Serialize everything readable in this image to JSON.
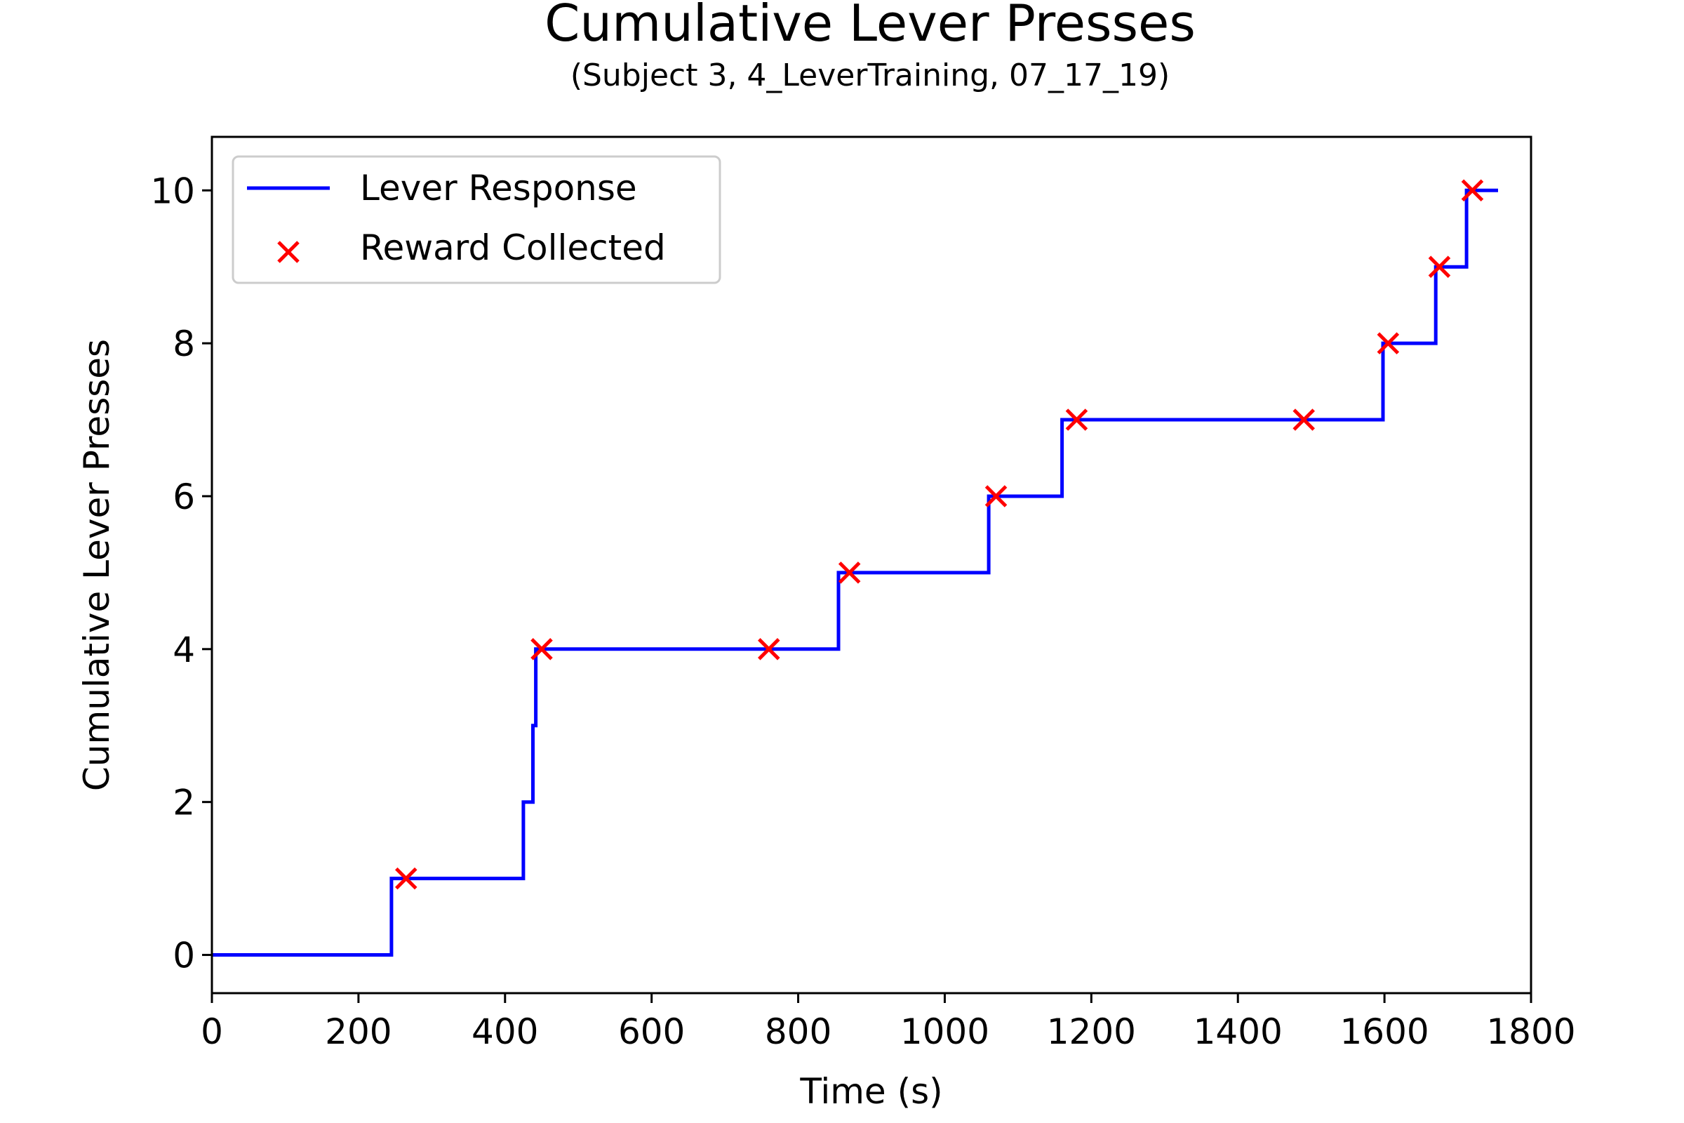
{
  "chart_data": {
    "type": "line",
    "title": "Cumulative Lever Presses",
    "subtitle": "(Subject 3, 4_LeverTraining, 07_17_19)",
    "xlabel": "Time (s)",
    "ylabel": "Cumulative Lever Presses",
    "xlim": [
      0,
      1800
    ],
    "ylim": [
      -0.5,
      10.7
    ],
    "x_ticks": [
      0,
      200,
      400,
      600,
      800,
      1000,
      1200,
      1400,
      1600,
      1800
    ],
    "y_ticks": [
      0,
      2,
      4,
      6,
      8,
      10
    ],
    "grid": false,
    "legend_position": "upper-left",
    "series": [
      {
        "name": "Lever Response",
        "type": "step",
        "color": "#0000ff",
        "points": [
          [
            0,
            0
          ],
          [
            245,
            0
          ],
          [
            245,
            1
          ],
          [
            425,
            1
          ],
          [
            425,
            2
          ],
          [
            438,
            2
          ],
          [
            438,
            3
          ],
          [
            442,
            3
          ],
          [
            442,
            4
          ],
          [
            855,
            4
          ],
          [
            855,
            5
          ],
          [
            1060,
            5
          ],
          [
            1060,
            6
          ],
          [
            1160,
            6
          ],
          [
            1160,
            7
          ],
          [
            1598,
            7
          ],
          [
            1598,
            8
          ],
          [
            1670,
            8
          ],
          [
            1670,
            9
          ],
          [
            1712,
            9
          ],
          [
            1712,
            10
          ],
          [
            1755,
            10
          ]
        ]
      },
      {
        "name": "Reward Collected",
        "type": "scatter",
        "marker": "x",
        "color": "#ff0000",
        "points": [
          [
            265,
            1
          ],
          [
            450,
            4
          ],
          [
            760,
            4
          ],
          [
            870,
            5
          ],
          [
            1070,
            6
          ],
          [
            1180,
            7
          ],
          [
            1490,
            7
          ],
          [
            1605,
            8
          ],
          [
            1675,
            9
          ],
          [
            1720,
            10
          ]
        ]
      }
    ]
  }
}
